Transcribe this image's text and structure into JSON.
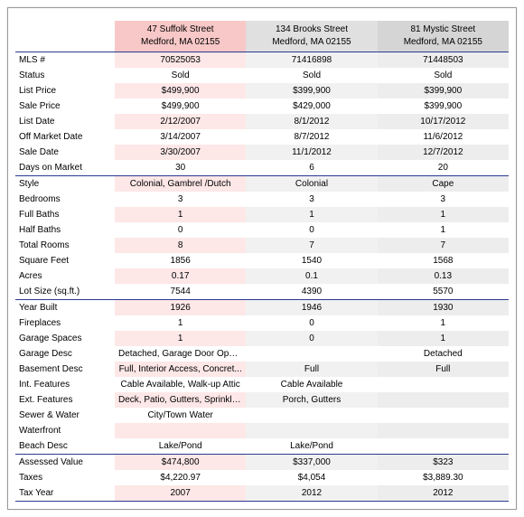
{
  "colors": {
    "header1": "#f8c8c8",
    "header2": "#e0e0e0",
    "header3": "#d5d5d5",
    "stripe1": "#fde7e7",
    "stripe2": "#f1f1f1",
    "stripe3": "#ededed",
    "white": "#ffffff",
    "rule": "#2b3a8f"
  },
  "properties": [
    {
      "address": "47 Suffolk Street",
      "city": "Medford, MA 02155"
    },
    {
      "address": "134 Brooks Street",
      "city": "Medford, MA 02155"
    },
    {
      "address": "81 Mystic Street",
      "city": "Medford, MA 02155"
    }
  ],
  "sections": [
    [
      {
        "label": "MLS #",
        "v": [
          "70525053",
          "71416898",
          "71448503"
        ]
      },
      {
        "label": "Status",
        "v": [
          "Sold",
          "Sold",
          "Sold"
        ]
      },
      {
        "label": "List Price",
        "v": [
          "$499,900",
          "$399,900",
          "$399,900"
        ]
      },
      {
        "label": "Sale Price",
        "v": [
          "$499,900",
          "$429,000",
          "$399,900"
        ]
      },
      {
        "label": "List Date",
        "v": [
          "2/12/2007",
          "8/1/2012",
          "10/17/2012"
        ]
      },
      {
        "label": "Off Market Date",
        "v": [
          "3/14/2007",
          "8/7/2012",
          "11/6/2012"
        ]
      },
      {
        "label": "Sale Date",
        "v": [
          "3/30/2007",
          "11/1/2012",
          "12/7/2012"
        ]
      },
      {
        "label": "Days on Market",
        "v": [
          "30",
          "6",
          "20"
        ]
      }
    ],
    [
      {
        "label": "Style",
        "v": [
          "Colonial, Gambrel /Dutch",
          "Colonial",
          "Cape"
        ]
      },
      {
        "label": "Bedrooms",
        "v": [
          "3",
          "3",
          "3"
        ]
      },
      {
        "label": "Full Baths",
        "v": [
          "1",
          "1",
          "1"
        ]
      },
      {
        "label": "Half Baths",
        "v": [
          "0",
          "0",
          "1"
        ]
      },
      {
        "label": "Total Rooms",
        "v": [
          "8",
          "7",
          "7"
        ]
      },
      {
        "label": "Square Feet",
        "v": [
          "1856",
          "1540",
          "1568"
        ]
      },
      {
        "label": "Acres",
        "v": [
          "0.17",
          "0.1",
          "0.13"
        ]
      },
      {
        "label": "Lot Size (sq.ft.)",
        "v": [
          "7544",
          "4390",
          "5570"
        ]
      }
    ],
    [
      {
        "label": "Year Built",
        "v": [
          "1926",
          "1946",
          "1930"
        ]
      },
      {
        "label": "Fireplaces",
        "v": [
          "1",
          "0",
          "1"
        ]
      },
      {
        "label": "Garage Spaces",
        "v": [
          "1",
          "0",
          "1"
        ]
      },
      {
        "label": "Garage Desc",
        "v": [
          "Detached, Garage Door Opener",
          "",
          "Detached"
        ]
      },
      {
        "label": "Basement Desc",
        "v": [
          "Full, Interior Access, Concret...",
          "Full",
          "Full"
        ]
      },
      {
        "label": "Int. Features",
        "v": [
          "Cable Available, Walk-up Attic",
          "Cable Available",
          ""
        ]
      },
      {
        "label": "Ext. Features",
        "v": [
          "Deck, Patio, Gutters, Sprinkle...",
          "Porch, Gutters",
          ""
        ]
      },
      {
        "label": "Sewer & Water",
        "v": [
          "City/Town Water",
          "",
          ""
        ]
      },
      {
        "label": "Waterfront",
        "v": [
          "",
          "",
          ""
        ]
      },
      {
        "label": "Beach Desc",
        "v": [
          "Lake/Pond",
          "Lake/Pond",
          ""
        ]
      }
    ],
    [
      {
        "label": "Assessed Value",
        "v": [
          "$474,800",
          "$337,000",
          "$323"
        ]
      },
      {
        "label": "Taxes",
        "v": [
          "$4,220.97",
          "$4,054",
          "$3,889.30"
        ]
      },
      {
        "label": "Tax Year",
        "v": [
          "2007",
          "2012",
          "2012"
        ]
      }
    ]
  ]
}
